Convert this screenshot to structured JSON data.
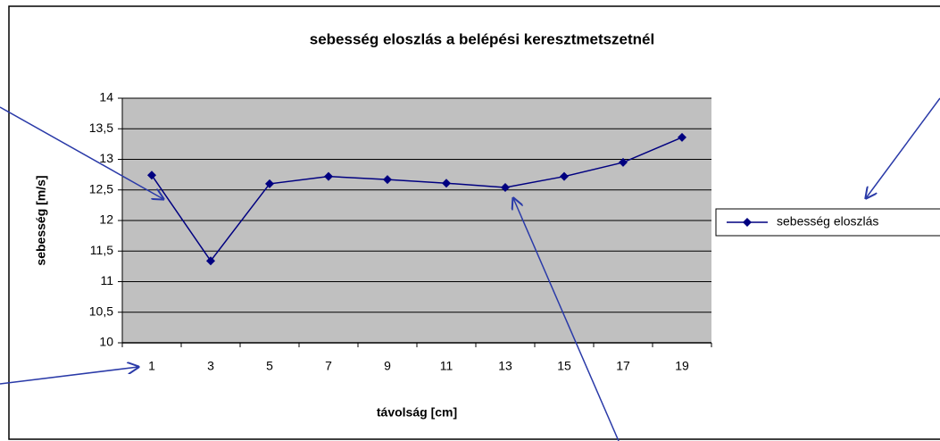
{
  "chart_data": {
    "type": "line",
    "title": "sebesség eloszlás a belépési keresztmetszetnél",
    "x_label": "távolság [cm]",
    "y_label": "sebesség [m/s]",
    "categories": [
      "1",
      "3",
      "5",
      "7",
      "9",
      "11",
      "13",
      "15",
      "17",
      "19"
    ],
    "series": [
      {
        "name": "sebesség eloszlás",
        "color": "#000080",
        "values": [
          12.74,
          11.34,
          12.6,
          12.72,
          12.67,
          12.61,
          12.54,
          12.72,
          12.95,
          13.36
        ]
      }
    ],
    "ylim": [
      10,
      14
    ],
    "yticks": [
      10,
      {
        "value": 10.5,
        "label": "10,5"
      },
      11,
      {
        "value": 11.5,
        "label": "11,5"
      },
      12,
      {
        "value": 12.5,
        "label": "12,5"
      },
      13,
      {
        "value": 13.5,
        "label": "13,5"
      },
      14
    ],
    "grid": true,
    "legend": "right",
    "plot_background": "#c0c0c0"
  }
}
